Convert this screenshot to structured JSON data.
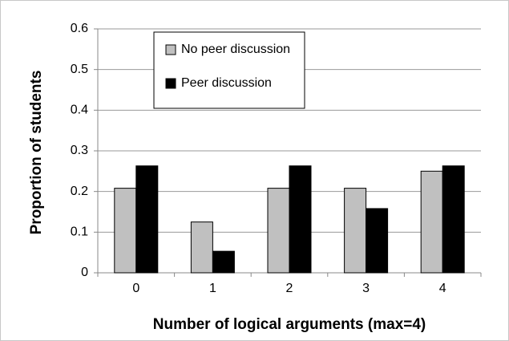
{
  "chart_data": {
    "type": "bar",
    "x_label": "Number of logical arguments (max=4)",
    "y_label": "Proportion of students",
    "categories": [
      "0",
      "1",
      "2",
      "3",
      "4"
    ],
    "series": [
      {
        "name": "No peer discussion",
        "color": "#c0c0c0",
        "values": [
          0.208,
          0.125,
          0.208,
          0.208,
          0.25
        ]
      },
      {
        "name": "Peer discussion",
        "color": "#000000",
        "values": [
          0.263,
          0.053,
          0.263,
          0.158,
          0.263
        ]
      }
    ],
    "ylim": [
      0,
      0.6
    ],
    "yticks": [
      0,
      0.1,
      0.2,
      0.3,
      0.4,
      0.5,
      0.6
    ],
    "grid": true,
    "legend": "top-left"
  }
}
